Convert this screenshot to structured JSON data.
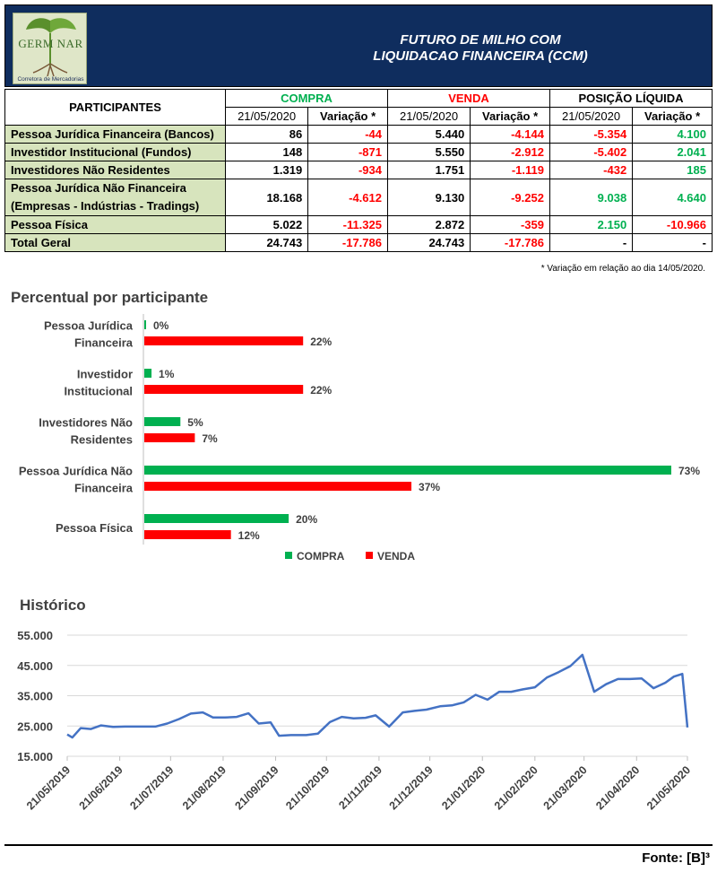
{
  "header": {
    "logo_text": "GERM NAR",
    "logo_sub": "Corretora de Mercadorias",
    "title_line1": "FUTURO DE MILHO COM",
    "title_line2": "LIQUIDACAO FINANCEIRA (CCM)"
  },
  "table": {
    "participants_label": "PARTICIPANTES",
    "group_compra": "COMPRA",
    "group_venda": "VENDA",
    "group_posicao": "POSIÇÃO LÍQUIDA",
    "date_label": "21/05/2020",
    "variation_label": "Variação *",
    "rows": [
      {
        "label": "Pessoa Jurídica Financeira (Bancos)",
        "compra": "86",
        "compra_var": "-44",
        "venda": "5.440",
        "venda_var": "-4.144",
        "pos": "-5.354",
        "pos_var": "4.100"
      },
      {
        "label": "Investidor Institucional (Fundos)",
        "compra": "148",
        "compra_var": "-871",
        "venda": "5.550",
        "venda_var": "-2.912",
        "pos": "-5.402",
        "pos_var": "2.041"
      },
      {
        "label": "Investidores Não Residentes",
        "compra": "1.319",
        "compra_var": "-934",
        "venda": "1.751",
        "venda_var": "-1.119",
        "pos": "-432",
        "pos_var": "185"
      },
      {
        "label1": "Pessoa Jurídica Não Financeira",
        "label2": "(Empresas - Indústrias - Tradings)",
        "compra": "18.168",
        "compra_var": "-4.612",
        "venda": "9.130",
        "venda_var": "-9.252",
        "pos": "9.038",
        "pos_var": "4.640"
      },
      {
        "label": "Pessoa Física",
        "compra": "5.022",
        "compra_var": "-11.325",
        "venda": "2.872",
        "venda_var": "-359",
        "pos": "2.150",
        "pos_var": "-10.966"
      },
      {
        "label": "Total Geral",
        "compra": "24.743",
        "compra_var": "-17.786",
        "venda": "24.743",
        "venda_var": "-17.786",
        "pos": "-",
        "pos_var": "-"
      }
    ],
    "footnote": "* Variação em relação ao dia 14/05/2020."
  },
  "chart_data": [
    {
      "type": "bar",
      "orientation": "horizontal",
      "title": "Percentual por participante",
      "categories": [
        [
          "Pessoa Jurídica",
          "Financeira"
        ],
        [
          "Investidor",
          "Institucional"
        ],
        [
          "Investidores Não",
          "Residentes"
        ],
        [
          "Pessoa Jurídica Não",
          "Financeira"
        ],
        [
          "Pessoa Física"
        ]
      ],
      "series": [
        {
          "name": "COMPRA",
          "color": "#00b050",
          "values": [
            0,
            1,
            5,
            73,
            20
          ]
        },
        {
          "name": "VENDA",
          "color": "#ff0000",
          "values": [
            22,
            22,
            7,
            37,
            12
          ]
        }
      ],
      "value_suffix": "%",
      "legend": "bottom",
      "grid": false
    },
    {
      "type": "line",
      "title": "Histórico",
      "color": "#4472c4",
      "x_ticks": [
        "21/05/2019",
        "21/06/2019",
        "21/07/2019",
        "21/08/2019",
        "21/09/2019",
        "21/10/2019",
        "21/11/2019",
        "21/12/2019",
        "21/01/2020",
        "21/02/2020",
        "21/03/2020",
        "21/04/2020",
        "21/05/2020"
      ],
      "y_ticks": [
        "55.000",
        "45.000",
        "35.000",
        "25.000",
        "15.000"
      ],
      "ylim": [
        15000,
        55000
      ],
      "grid": true,
      "points": [
        [
          "2019-05-21",
          22200
        ],
        [
          "2019-05-24",
          21200
        ],
        [
          "2019-05-29",
          24300
        ],
        [
          "2019-06-04",
          24000
        ],
        [
          "2019-06-10",
          25200
        ],
        [
          "2019-06-17",
          24700
        ],
        [
          "2019-06-24",
          24800
        ],
        [
          "2019-07-03",
          24800
        ],
        [
          "2019-07-12",
          24800
        ],
        [
          "2019-07-19",
          25800
        ],
        [
          "2019-07-26",
          27300
        ],
        [
          "2019-08-02",
          29100
        ],
        [
          "2019-08-09",
          29500
        ],
        [
          "2019-08-15",
          27800
        ],
        [
          "2019-08-22",
          27800
        ],
        [
          "2019-08-29",
          28000
        ],
        [
          "2019-09-05",
          29200
        ],
        [
          "2019-09-11",
          25800
        ],
        [
          "2019-09-18",
          26200
        ],
        [
          "2019-09-23",
          21800
        ],
        [
          "2019-09-30",
          22000
        ],
        [
          "2019-10-09",
          22000
        ],
        [
          "2019-10-16",
          22500
        ],
        [
          "2019-10-23",
          26300
        ],
        [
          "2019-10-30",
          28000
        ],
        [
          "2019-11-06",
          27500
        ],
        [
          "2019-11-13",
          27700
        ],
        [
          "2019-11-19",
          28500
        ],
        [
          "2019-11-27",
          24800
        ],
        [
          "2019-12-05",
          29500
        ],
        [
          "2019-12-12",
          30000
        ],
        [
          "2019-12-19",
          30400
        ],
        [
          "2019-12-27",
          31500
        ],
        [
          "2020-01-03",
          31800
        ],
        [
          "2020-01-10",
          32800
        ],
        [
          "2020-01-17",
          35300
        ],
        [
          "2020-01-24",
          33700
        ],
        [
          "2020-01-31",
          36300
        ],
        [
          "2020-02-07",
          36300
        ],
        [
          "2020-02-14",
          37100
        ],
        [
          "2020-02-21",
          37800
        ],
        [
          "2020-02-28",
          41000
        ],
        [
          "2020-03-06",
          42800
        ],
        [
          "2020-03-13",
          44800
        ],
        [
          "2020-03-20",
          48500
        ],
        [
          "2020-03-27",
          36300
        ],
        [
          "2020-04-03",
          38800
        ],
        [
          "2020-04-10",
          40500
        ],
        [
          "2020-04-17",
          40500
        ],
        [
          "2020-04-24",
          40700
        ],
        [
          "2020-05-01",
          37500
        ],
        [
          "2020-05-08",
          39300
        ],
        [
          "2020-05-13",
          41300
        ],
        [
          "2020-05-18",
          42200
        ],
        [
          "2020-05-21",
          24500
        ]
      ]
    }
  ],
  "source": "Fonte: [B]³"
}
